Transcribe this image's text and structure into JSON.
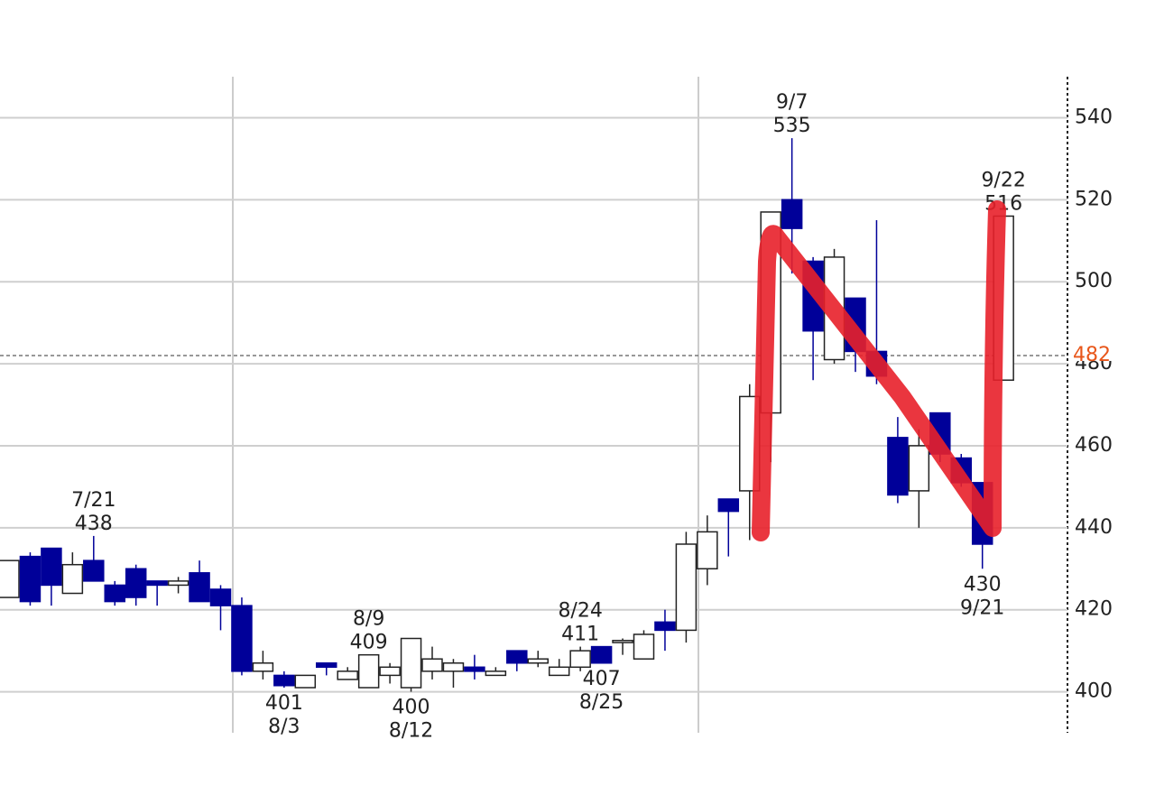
{
  "chart_data": {
    "type": "candlestick",
    "categories": [
      null,
      null,
      null,
      null,
      "7/21",
      null,
      null,
      null,
      null,
      null,
      null,
      null,
      null,
      "8/3",
      null,
      null,
      null,
      "8/9",
      null,
      "8/12",
      null,
      null,
      null,
      null,
      null,
      null,
      null,
      "8/24",
      "8/25",
      null,
      null,
      null,
      null,
      null,
      null,
      null,
      null,
      "9/7",
      null,
      null,
      null,
      null,
      null,
      null,
      null,
      null,
      "9/21",
      "9/22"
    ],
    "open": [
      423,
      433,
      435,
      424,
      432,
      426,
      430,
      427,
      426,
      429,
      425,
      421,
      405,
      404,
      401,
      407,
      403,
      401,
      404,
      401,
      405,
      405,
      406,
      404,
      410,
      407,
      404,
      406,
      411,
      412,
      408,
      417,
      415,
      430,
      447,
      449,
      468,
      520,
      505,
      481,
      496,
      483,
      462,
      449,
      468,
      457,
      451,
      476
    ],
    "high": [
      432,
      434,
      435,
      434,
      438,
      427,
      431,
      427,
      428,
      432,
      426,
      423,
      410,
      405,
      404,
      407,
      406,
      409,
      407,
      413,
      411,
      408,
      409,
      406,
      410,
      410,
      408,
      411,
      411,
      413,
      415,
      420,
      439,
      443,
      447,
      475,
      517,
      535,
      506,
      508,
      496,
      515,
      467,
      464,
      468,
      458,
      451,
      516
    ],
    "low": [
      423,
      421,
      421,
      424,
      427,
      421,
      421,
      421,
      424,
      422,
      415,
      404,
      403,
      401,
      401,
      404,
      403,
      401,
      402,
      400,
      403,
      401,
      403,
      404,
      405,
      406,
      404,
      405,
      407,
      409,
      408,
      410,
      412,
      426,
      433,
      437,
      456,
      502,
      476,
      480,
      478,
      475,
      446,
      440,
      456,
      450,
      430,
      476
    ],
    "close": [
      432,
      422,
      426,
      431,
      427,
      422,
      423,
      426,
      427,
      422,
      421,
      405,
      407,
      401.5,
      404,
      406,
      405,
      409,
      406,
      413,
      408,
      407,
      405,
      405,
      407,
      408,
      406,
      410,
      407,
      412.5,
      414,
      415,
      436,
      439,
      444,
      472,
      517,
      513,
      488,
      506,
      483,
      477,
      448,
      460,
      458,
      451,
      436,
      516
    ],
    "up_color": "#ffffff",
    "down_color": "#000099",
    "annotations": [
      {
        "date": "7/21",
        "value": 438,
        "at": "high"
      },
      {
        "date": "8/3",
        "value": 401,
        "at": "low"
      },
      {
        "date": "8/9",
        "value": 409,
        "at": "high"
      },
      {
        "date": "8/12",
        "value": 400,
        "at": "low"
      },
      {
        "date": "8/24",
        "value": 411,
        "at": "high"
      },
      {
        "date": "8/25",
        "value": 407,
        "at": "low"
      },
      {
        "date": "9/7",
        "value": 535,
        "at": "high"
      },
      {
        "date": "9/21",
        "value": 430,
        "at": "low"
      },
      {
        "date": "9/22",
        "value": 516,
        "at": "high"
      }
    ],
    "current_price": 482,
    "current_color": "#e8561a",
    "ylim": [
      390,
      550
    ],
    "yticks": [
      400,
      420,
      440,
      460,
      480,
      500,
      520,
      540
    ],
    "grid": true
  }
}
